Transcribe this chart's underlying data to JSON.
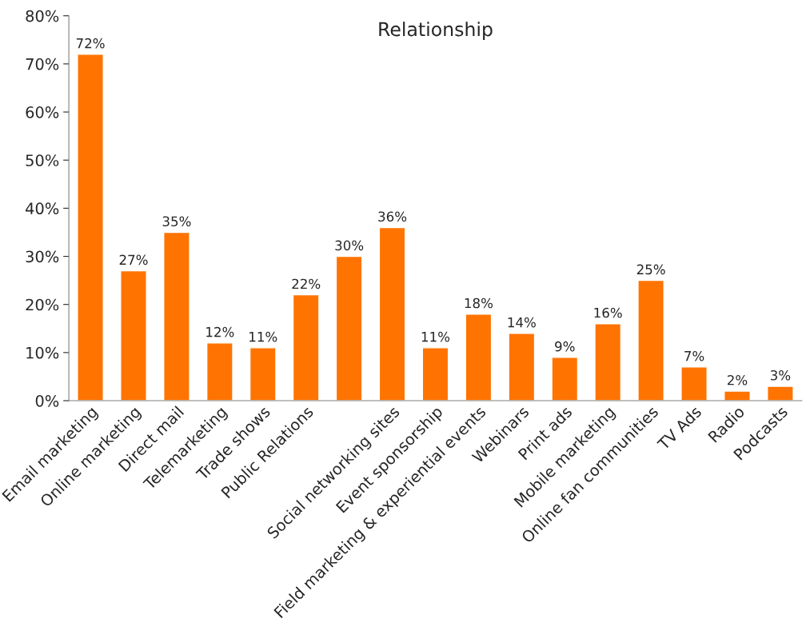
{
  "chart_data": {
    "type": "bar",
    "title": "Relationship",
    "categories": [
      "Email marketing",
      "Online marketing",
      "Direct mail",
      "Telemarketing",
      "Trade shows",
      "Public Relations",
      null,
      "Social networking sites",
      "Event sponsorship",
      "Field marketing & experiential events",
      "Webinars",
      "Print ads",
      "Mobile marketing",
      "Online fan communities",
      "TV Ads",
      "Radio",
      "Podcasts"
    ],
    "values": [
      72,
      27,
      35,
      12,
      11,
      22,
      30,
      36,
      11,
      18,
      14,
      9,
      16,
      25,
      7,
      2,
      3
    ],
    "value_labels": [
      "72%",
      "27%",
      "35%",
      "12%",
      "11%",
      "22%",
      "30%",
      "36%",
      "11%",
      "18%",
      "14%",
      "9%",
      "16%",
      "25%",
      "7%",
      "2%",
      "3%"
    ],
    "color": "#ff7300",
    "ylim": [
      0,
      80
    ],
    "yticks": [
      {
        "value": 0,
        "label": "0%"
      },
      {
        "value": 10,
        "label": "10%"
      },
      {
        "value": 20,
        "label": "20%"
      },
      {
        "value": 30,
        "label": "30%"
      },
      {
        "value": 40,
        "label": "40%"
      },
      {
        "value": 50,
        "label": "50%"
      },
      {
        "value": 60,
        "label": "60%"
      },
      {
        "value": 70,
        "label": "70%"
      },
      {
        "value": 80,
        "label": "80%"
      }
    ],
    "grid": false,
    "legend": false
  }
}
